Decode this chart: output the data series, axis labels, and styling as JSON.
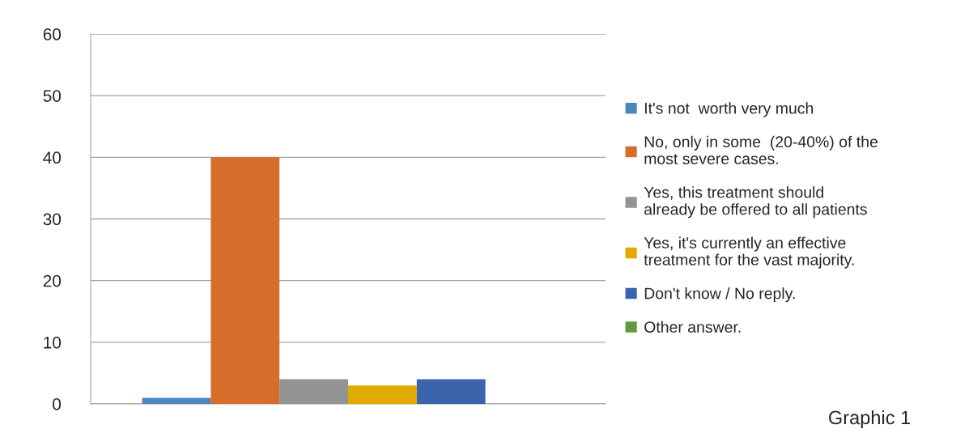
{
  "chart_data": {
    "type": "bar",
    "categories": [
      null
    ],
    "series": [
      {
        "name": "It's not  worth very much",
        "color": "#4e86c0",
        "values": [
          1
        ]
      },
      {
        "name": "No, only in some  (20-40%) of the\nmost severe cases.",
        "color": "#d46e2a",
        "values": [
          40
        ]
      },
      {
        "name": "Yes, this treatment should\nalready be offered to all patients",
        "color": "#939393",
        "values": [
          4
        ]
      },
      {
        "name": "Yes, it's currently an effective\ntreatment for the vast majority.",
        "color": "#e2ab00",
        "values": [
          3
        ]
      },
      {
        "name": "Don't know / No reply.",
        "color": "#3b64ad",
        "values": [
          4
        ]
      },
      {
        "name": "Other answer.",
        "color": "#62993e",
        "values": [
          0
        ]
      }
    ],
    "ylim": [
      0,
      60
    ],
    "yticks": [
      0,
      10,
      20,
      30,
      40,
      50,
      60
    ],
    "grid": "y",
    "legend": "right",
    "annotations": [
      "Graphic 1"
    ]
  }
}
